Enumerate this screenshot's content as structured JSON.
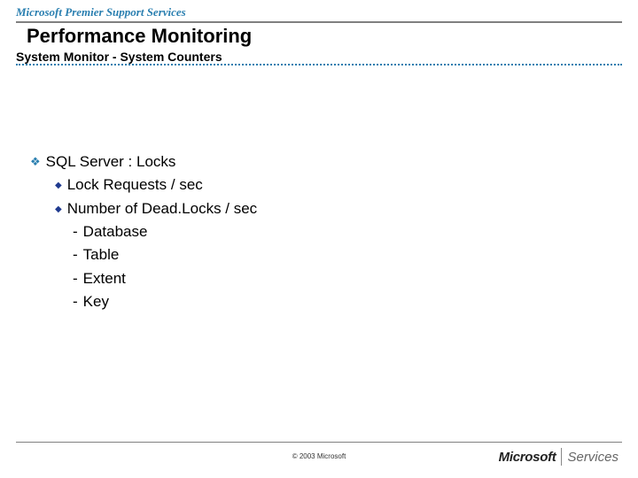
{
  "header": {
    "brand": "Microsoft Premier Support Services",
    "title": "Performance Monitoring",
    "subtitle": "System Monitor - System Counters"
  },
  "colors": {
    "brand_blue": "#2a7fb0",
    "bullet_navy": "#1f3a8f",
    "rule_gray": "#808080"
  },
  "content": {
    "lvl1": {
      "text": "SQL Server : Locks",
      "bullet": "❖"
    },
    "lvl2": [
      {
        "text": "Lock Requests / sec",
        "bullet": "◆"
      },
      {
        "text": "Number of Dead.Locks / sec",
        "bullet": "◆"
      }
    ],
    "lvl3": [
      {
        "text": "Database",
        "bullet": "-"
      },
      {
        "text": "Table",
        "bullet": "-"
      },
      {
        "text": "Extent",
        "bullet": "-"
      },
      {
        "text": "Key",
        "bullet": "-"
      }
    ]
  },
  "footer": {
    "copyright": "© 2003 Microsoft",
    "logo_left": "Microsoft",
    "logo_right": "Services"
  }
}
